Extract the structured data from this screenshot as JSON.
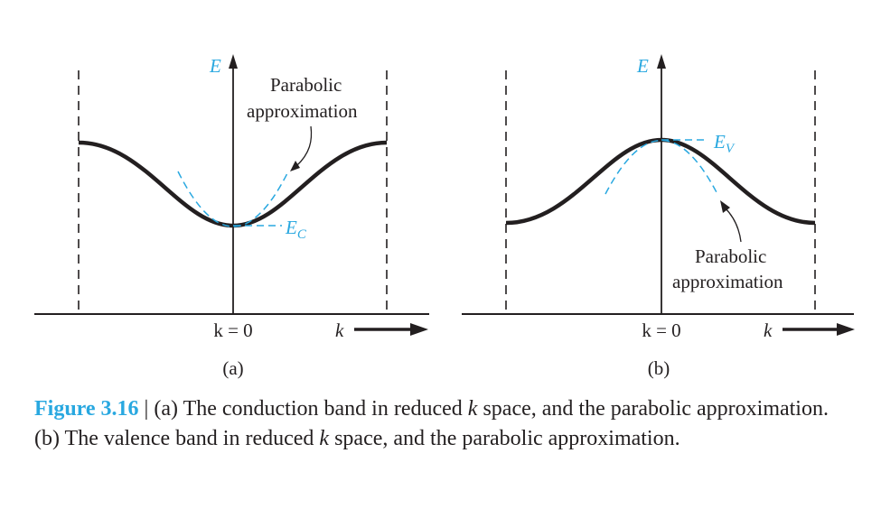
{
  "panel_a": {
    "energy_axis": "E",
    "callout_line1": "Parabolic",
    "callout_line2": "approximation",
    "band_edge": "E",
    "band_edge_sub": "C",
    "k_zero": "k = 0",
    "k_axis": "k",
    "sub_label": "(a)"
  },
  "panel_b": {
    "energy_axis": "E",
    "callout_line1": "Parabolic",
    "callout_line2": "approximation",
    "band_edge": "E",
    "band_edge_sub": "V",
    "k_zero": "k = 0",
    "k_axis": "k",
    "sub_label": "(b)"
  },
  "caption": {
    "figure_label": "Figure 3.16",
    "separator": " | ",
    "text_1": "(a) The conduction band in reduced ",
    "k1": "k",
    "text_2": " space, and the parabolic approximation. (b) The valence band in reduced ",
    "k2": "k",
    "text_3": " space, and the parabolic approximation."
  },
  "colors": {
    "text": "#231f20",
    "accent": "#29a8e0"
  }
}
